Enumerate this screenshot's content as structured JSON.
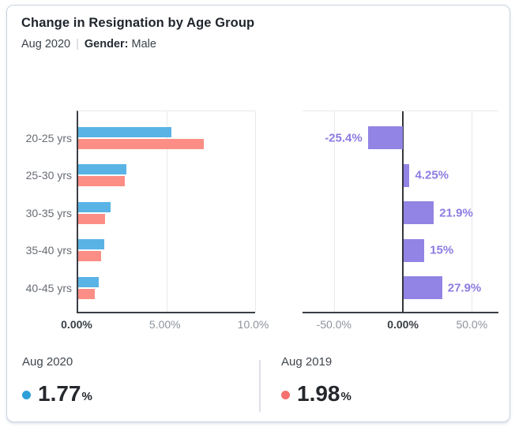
{
  "header": {
    "title": "Change in Resignation by Age Group",
    "period": "Aug 2020",
    "separator": "|",
    "filter_label": "Gender:",
    "filter_value": "Male"
  },
  "chart_data": [
    {
      "type": "bar",
      "orientation": "horizontal",
      "title": "Resignation rate by age group",
      "categories": [
        "20-25 yrs",
        "25-30 yrs",
        "30-35 yrs",
        "35-40 yrs",
        "40-45 yrs"
      ],
      "series": [
        {
          "name": "Aug 2020",
          "color": "#5ab3e5",
          "values": [
            5.3,
            2.75,
            1.85,
            1.47,
            1.18
          ]
        },
        {
          "name": "Aug 2019",
          "color": "#fc8e85",
          "values": [
            7.1,
            2.64,
            1.52,
            1.28,
            0.92
          ]
        }
      ],
      "unit": "%",
      "xlim": [
        0,
        10.11
      ],
      "grid": true,
      "xticks": [
        {
          "label": "0.00%",
          "value": 0,
          "emphasis": true
        },
        {
          "label": "5.00%",
          "value": 5,
          "emphasis": false
        },
        {
          "label": "10.0%",
          "value": 10,
          "emphasis": false
        }
      ]
    },
    {
      "type": "bar",
      "orientation": "horizontal",
      "title": "Change vs previous year",
      "categories": [
        "20-25 yrs",
        "25-30 yrs",
        "30-35 yrs",
        "35-40 yrs",
        "40-45 yrs"
      ],
      "color": "#9184e4",
      "label_color": "#8b7ce2",
      "values": [
        -25.4,
        4.25,
        21.9,
        15,
        27.9
      ],
      "labels": [
        "-25.4%",
        "4.25%",
        "21.9%",
        "15%",
        "27.9%"
      ],
      "unit": "%",
      "xlim": [
        -72.8,
        69.3
      ],
      "grid": true,
      "xticks": [
        {
          "label": "-50.0%",
          "value": -50,
          "emphasis": false
        },
        {
          "label": "0.00%",
          "value": 0,
          "emphasis": true
        },
        {
          "label": "50.0%",
          "value": 50,
          "emphasis": false
        }
      ]
    }
  ],
  "kpis": [
    {
      "label": "Aug 2020",
      "value": "1.77",
      "unit": "%",
      "dot_color": "#2e9fd8"
    },
    {
      "label": "Aug 2019",
      "value": "1.98",
      "unit": "%",
      "dot_color": "#f4716d"
    }
  ],
  "colors": {
    "aug2020_bar": "#5ab3e5",
    "aug2019_bar": "#fc8e85",
    "change_bar": "#9184e4",
    "change_label": "#8b7ce2",
    "axis_dark": "#3a3e44",
    "gridline": "#e7e9ed",
    "card_border": "#c9d4e2"
  }
}
